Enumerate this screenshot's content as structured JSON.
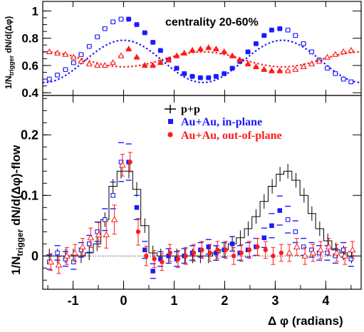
{
  "chart_data": [
    {
      "panel": "top",
      "type": "scatter",
      "annotation": "centrality 20-60%",
      "ylabel": "1/N_trigger dN/d(Δφ)",
      "xlim": [
        -1.6,
        4.7
      ],
      "ylim": [
        0.38,
        1.07
      ],
      "y_ticks": [
        0.4,
        0.6,
        0.8,
        1
      ],
      "y_tick_labels": [
        "0.4",
        "0.6",
        "0.8",
        "1"
      ],
      "x_ticks": [
        -1,
        0,
        1,
        2,
        3,
        4
      ],
      "colors": {
        "in_plane": "#1a1aff",
        "out_of_plane": "#ff1a1a"
      },
      "series": [
        {
          "key": "in_plane",
          "x": [
            -1.47,
            -1.31,
            -1.15,
            -0.99,
            -0.84,
            -0.68,
            -0.52,
            -0.37,
            -0.21,
            -0.05,
            0.1,
            0.26,
            0.42,
            0.58,
            0.73,
            0.89,
            1.05,
            1.2,
            1.36,
            1.52,
            1.68,
            1.83,
            1.99,
            2.15,
            2.3,
            2.46,
            2.62,
            2.78,
            2.93,
            3.09,
            3.25,
            3.4,
            3.56,
            3.72,
            3.87,
            4.03,
            4.19,
            4.35,
            4.5
          ],
          "y": [
            0.5,
            0.53,
            0.57,
            0.62,
            0.68,
            0.74,
            0.81,
            0.87,
            0.92,
            0.94,
            0.94,
            0.9,
            0.84,
            0.77,
            0.71,
            0.64,
            0.58,
            0.54,
            0.52,
            0.51,
            0.51,
            0.52,
            0.54,
            0.58,
            0.63,
            0.7,
            0.76,
            0.82,
            0.86,
            0.87,
            0.86,
            0.82,
            0.76,
            0.7,
            0.64,
            0.58,
            0.54,
            0.5,
            0.48
          ],
          "filled": [
            false,
            false,
            false,
            false,
            false,
            false,
            false,
            false,
            false,
            false,
            true,
            true,
            true,
            true,
            true,
            true,
            true,
            true,
            true,
            true,
            true,
            true,
            true,
            true,
            true,
            true,
            true,
            true,
            true,
            true,
            false,
            false,
            false,
            false,
            false,
            false,
            false,
            false,
            false
          ]
        },
        {
          "key": "out_of_plane",
          "x": [
            -1.47,
            -1.31,
            -1.15,
            -0.99,
            -0.84,
            -0.68,
            -0.52,
            -0.37,
            -0.21,
            -0.05,
            0.1,
            0.26,
            0.42,
            0.58,
            0.73,
            0.89,
            1.05,
            1.2,
            1.36,
            1.52,
            1.68,
            1.83,
            1.99,
            2.15,
            2.3,
            2.46,
            2.62,
            2.78,
            2.93,
            3.09,
            3.25,
            3.4,
            3.56,
            3.72,
            3.87,
            4.03,
            4.19,
            4.35,
            4.5
          ],
          "y": [
            0.7,
            0.69,
            0.68,
            0.66,
            0.63,
            0.61,
            0.6,
            0.6,
            0.62,
            0.67,
            0.72,
            0.66,
            0.6,
            0.6,
            0.62,
            0.64,
            0.67,
            0.69,
            0.71,
            0.72,
            0.73,
            0.72,
            0.7,
            0.67,
            0.64,
            0.61,
            0.59,
            0.57,
            0.56,
            0.56,
            0.56,
            0.57,
            0.59,
            0.61,
            0.63,
            0.66,
            0.68,
            0.7,
            0.71
          ],
          "filled": [
            false,
            false,
            false,
            false,
            false,
            false,
            false,
            false,
            false,
            false,
            true,
            true,
            true,
            true,
            true,
            true,
            true,
            true,
            true,
            true,
            true,
            true,
            true,
            true,
            true,
            true,
            true,
            true,
            true,
            true,
            false,
            false,
            false,
            false,
            false,
            false,
            false,
            false,
            false
          ]
        }
      ],
      "flow_curves": [
        {
          "key": "in_plane",
          "mean": 0.63,
          "amplitude": 0.155
        },
        {
          "key": "out_of_plane",
          "mean": 0.645,
          "amplitude": -0.055
        }
      ]
    },
    {
      "panel": "bottom",
      "type": "scatter",
      "ylabel": "1/N_trigger dN/d(Δφ)-flow",
      "xlabel": "Δ φ (radians)",
      "xlim": [
        -1.6,
        4.7
      ],
      "ylim": [
        -0.055,
        0.265
      ],
      "y_ticks": [
        0,
        0.1,
        0.2
      ],
      "y_tick_labels": [
        "0",
        "0.1",
        "0.2"
      ],
      "x_ticks": [
        -1,
        0,
        1,
        2,
        3,
        4
      ],
      "x_tick_labels": [
        "-1",
        "0",
        "1",
        "2",
        "3",
        "4"
      ],
      "legend": [
        "p+p",
        "Au+Au, in-plane",
        "Au+Au, out-of-plane"
      ],
      "legend_colors": [
        "#000000",
        "#1a1aff",
        "#ff1a1a"
      ],
      "pp_histogram": {
        "edges": [
          -1.55,
          -1.39,
          -1.23,
          -1.07,
          -0.92,
          -0.76,
          -0.6,
          -0.45,
          -0.29,
          -0.13,
          0.03,
          0.18,
          0.34,
          0.5,
          0.66,
          0.81,
          0.97,
          1.13,
          1.29,
          1.44,
          1.6,
          1.76,
          1.91,
          2.07,
          2.23,
          2.39,
          2.54,
          2.7,
          2.86,
          3.02,
          3.17,
          3.33,
          3.49,
          3.65,
          3.8,
          3.96,
          4.12,
          4.28,
          4.43,
          4.59
        ],
        "values": [
          0.0,
          0.0,
          0.0,
          0.0,
          0.0,
          0.005,
          0.02,
          0.06,
          0.115,
          0.14,
          0.14,
          0.11,
          0.05,
          0.005,
          0.0,
          0.0,
          0.0,
          0.0,
          0.0,
          0.0,
          0.0,
          0.005,
          0.01,
          0.02,
          0.03,
          0.045,
          0.065,
          0.09,
          0.115,
          0.135,
          0.14,
          0.125,
          0.1,
          0.07,
          0.045,
          0.025,
          0.01,
          0.005,
          0.0
        ],
        "uncertainty": 0.012
      },
      "series": [
        {
          "key": "in_plane",
          "x": [
            -1.47,
            -1.31,
            -1.15,
            -0.99,
            -0.84,
            -0.68,
            -0.52,
            -0.37,
            -0.21,
            -0.05,
            0.1,
            0.26,
            0.42,
            0.58,
            0.73,
            0.89,
            1.05,
            1.2,
            1.36,
            1.52,
            1.68,
            1.83,
            1.99,
            2.15,
            2.3,
            2.46,
            2.62,
            2.78,
            2.93,
            3.09,
            3.25,
            3.4,
            3.56,
            3.72,
            3.87,
            4.03,
            4.19,
            4.35,
            4.5
          ],
          "y": [
            -0.01,
            0.005,
            -0.005,
            -0.01,
            0.01,
            0.02,
            0.04,
            0.06,
            0.1,
            0.155,
            0.155,
            0.08,
            0.01,
            -0.025,
            -0.005,
            0.0,
            -0.005,
            0.0,
            0.005,
            0.01,
            0.015,
            0.005,
            0.01,
            0.02,
            0.005,
            0.01,
            0.015,
            0.03,
            0.05,
            0.075,
            0.06,
            0.04,
            0.015,
            0.01,
            0.005,
            0.005,
            0.0,
            0.01,
            -0.005
          ],
          "err": [
            0.012,
            0.012,
            0.012,
            0.012,
            0.012,
            0.014,
            0.016,
            0.018,
            0.022,
            0.032,
            0.03,
            0.02,
            0.014,
            0.012,
            0.012,
            0.012,
            0.012,
            0.012,
            0.012,
            0.012,
            0.012,
            0.012,
            0.012,
            0.012,
            0.012,
            0.012,
            0.014,
            0.016,
            0.02,
            0.024,
            0.022,
            0.018,
            0.014,
            0.012,
            0.012,
            0.012,
            0.012,
            0.012,
            0.012
          ],
          "filled": [
            false,
            false,
            false,
            false,
            false,
            false,
            false,
            false,
            false,
            false,
            true,
            true,
            true,
            true,
            true,
            true,
            true,
            true,
            true,
            true,
            true,
            true,
            true,
            true,
            true,
            true,
            true,
            true,
            true,
            true,
            false,
            false,
            false,
            false,
            false,
            false,
            false,
            false,
            false
          ]
        },
        {
          "key": "out_of_plane",
          "x": [
            -1.47,
            -1.31,
            -1.15,
            -0.99,
            -0.84,
            -0.68,
            -0.52,
            -0.37,
            -0.21,
            -0.05,
            0.1,
            0.26,
            0.42,
            0.58,
            0.73,
            0.89,
            1.05,
            1.2,
            1.36,
            1.52,
            1.68,
            1.83,
            1.99,
            2.15,
            2.3,
            2.46,
            2.62,
            2.78,
            2.93,
            3.09,
            3.25,
            3.4,
            3.56,
            3.72,
            3.87,
            4.03,
            4.19,
            4.35,
            4.5
          ],
          "y": [
            -0.01,
            -0.015,
            0.0,
            0.005,
            0.015,
            0.03,
            0.035,
            0.035,
            0.06,
            0.15,
            0.155,
            0.04,
            0.0,
            -0.005,
            -0.01,
            0.005,
            -0.005,
            0.0,
            0.005,
            0.01,
            0.005,
            0.01,
            0.01,
            0.0,
            0.005,
            0.01,
            0.015,
            0.01,
            0.0,
            0.005,
            0.005,
            0.015,
            0.0,
            0.005,
            0.01,
            0.015,
            0.005,
            0.0,
            0.01
          ],
          "err": [
            0.014,
            0.014,
            0.014,
            0.014,
            0.014,
            0.016,
            0.02,
            0.022,
            0.024,
            0.018,
            0.016,
            0.022,
            0.016,
            0.014,
            0.014,
            0.014,
            0.014,
            0.014,
            0.014,
            0.014,
            0.014,
            0.014,
            0.014,
            0.014,
            0.014,
            0.014,
            0.014,
            0.014,
            0.014,
            0.014,
            0.014,
            0.014,
            0.014,
            0.014,
            0.014,
            0.014,
            0.014,
            0.014,
            0.014
          ],
          "filled": [
            false,
            false,
            false,
            false,
            false,
            false,
            false,
            false,
            false,
            false,
            true,
            true,
            true,
            true,
            true,
            true,
            true,
            true,
            true,
            true,
            true,
            true,
            true,
            true,
            true,
            true,
            true,
            true,
            true,
            true,
            false,
            false,
            false,
            false,
            false,
            false,
            false,
            false,
            false
          ]
        }
      ]
    }
  ],
  "text": {
    "top_annotation": "centrality 20-60%",
    "top_ylabel": "1/N",
    "top_ylabel_sub": "trigger",
    "top_ylabel_tail": " dN/d(Δφ)",
    "bottom_ylabel": "1/N",
    "bottom_ylabel_sub": "trigger",
    "bottom_ylabel_tail": " dN/d(Δφ)-flow",
    "xlabel": "Δ φ (radians)",
    "legend_pp": "p+p",
    "legend_in": "Au+Au, in-plane",
    "legend_out": "Au+Au, out-of-plane"
  }
}
